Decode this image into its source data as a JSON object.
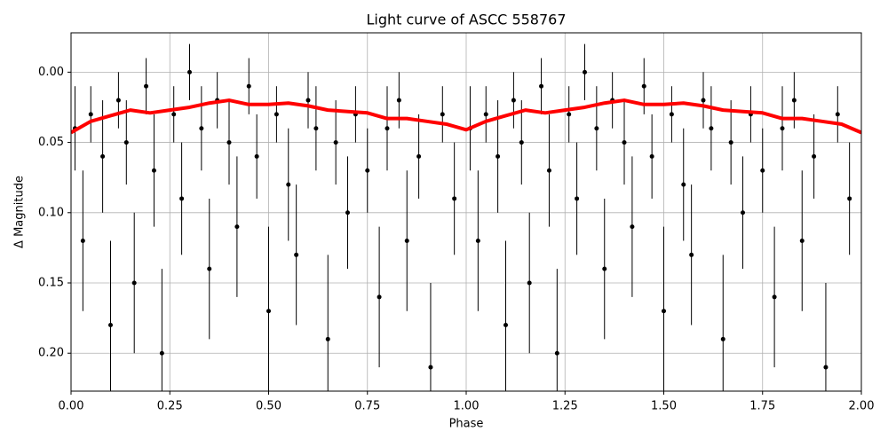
{
  "chart_data": {
    "type": "scatter",
    "title": "Light curve of ASCC 558767",
    "xlabel": "Phase",
    "ylabel": "Δ Magnitude",
    "xlim": [
      0,
      2
    ],
    "ylim": [
      -0.028,
      0.227
    ],
    "y_inverted": true,
    "grid": true,
    "xticks": [
      {
        "value": 0,
        "label": "0.00"
      },
      {
        "value": 0.25,
        "label": "0.25"
      },
      {
        "value": 0.5,
        "label": "0.50"
      },
      {
        "value": 0.75,
        "label": "0.75"
      },
      {
        "value": 1,
        "label": "1.00"
      },
      {
        "value": 1.25,
        "label": "1.25"
      },
      {
        "value": 1.5,
        "label": "1.50"
      },
      {
        "value": 1.75,
        "label": "1.75"
      },
      {
        "value": 2,
        "label": "2.00"
      }
    ],
    "yticks": [
      {
        "value": 0,
        "label": "0.00"
      },
      {
        "value": 0.05,
        "label": "0.05"
      },
      {
        "value": 0.1,
        "label": "0.10"
      },
      {
        "value": 0.15,
        "label": "0.15"
      },
      {
        "value": 0.2,
        "label": "0.20"
      }
    ],
    "points": {
      "color": "#000000",
      "x": [
        0.01,
        0.03,
        0.05,
        0.08,
        0.1,
        0.12,
        0.14,
        0.16,
        0.19,
        0.21,
        0.23,
        0.26,
        0.28,
        0.3,
        0.33,
        0.35,
        0.37,
        0.4,
        0.42,
        0.45,
        0.47,
        0.5,
        0.52,
        0.55,
        0.57,
        0.6,
        0.62,
        0.65,
        0.67,
        0.7,
        0.72,
        0.75,
        0.78,
        0.8,
        0.83,
        0.85,
        0.88,
        0.91,
        0.94,
        0.97,
        1.01,
        1.03,
        1.05,
        1.08,
        1.1,
        1.12,
        1.14,
        1.16,
        1.19,
        1.21,
        1.23,
        1.26,
        1.28,
        1.3,
        1.33,
        1.35,
        1.37,
        1.4,
        1.42,
        1.45,
        1.47,
        1.5,
        1.52,
        1.55,
        1.57,
        1.6,
        1.62,
        1.65,
        1.67,
        1.7,
        1.72,
        1.75,
        1.78,
        1.8,
        1.83,
        1.85,
        1.88,
        1.91,
        1.94,
        1.97
      ],
      "values": [
        0.04,
        0.12,
        0.03,
        0.06,
        0.18,
        0.02,
        0.05,
        0.15,
        0.01,
        0.07,
        0.2,
        0.03,
        0.09,
        0.0,
        0.04,
        0.14,
        0.02,
        0.05,
        0.11,
        0.01,
        0.06,
        0.17,
        0.03,
        0.08,
        0.13,
        0.02,
        0.04,
        0.19,
        0.05,
        0.1,
        0.03,
        0.07,
        0.16,
        0.04,
        0.02,
        0.12,
        0.06,
        0.21,
        0.03,
        0.09,
        0.04,
        0.12,
        0.03,
        0.06,
        0.18,
        0.02,
        0.05,
        0.15,
        0.01,
        0.07,
        0.2,
        0.03,
        0.09,
        0.0,
        0.04,
        0.14,
        0.02,
        0.05,
        0.11,
        0.01,
        0.06,
        0.17,
        0.03,
        0.08,
        0.13,
        0.02,
        0.04,
        0.19,
        0.05,
        0.1,
        0.03,
        0.07,
        0.16,
        0.04,
        0.02,
        0.12,
        0.06,
        0.21,
        0.03,
        0.09
      ],
      "errors": [
        0.03,
        0.05,
        0.02,
        0.04,
        0.06,
        0.02,
        0.03,
        0.05,
        0.02,
        0.04,
        0.06,
        0.02,
        0.04,
        0.02,
        0.03,
        0.05,
        0.02,
        0.03,
        0.05,
        0.02,
        0.03,
        0.06,
        0.02,
        0.04,
        0.05,
        0.02,
        0.03,
        0.06,
        0.03,
        0.04,
        0.02,
        0.03,
        0.05,
        0.03,
        0.02,
        0.05,
        0.03,
        0.06,
        0.02,
        0.04,
        0.03,
        0.05,
        0.02,
        0.04,
        0.06,
        0.02,
        0.03,
        0.05,
        0.02,
        0.04,
        0.06,
        0.02,
        0.04,
        0.02,
        0.03,
        0.05,
        0.02,
        0.03,
        0.05,
        0.02,
        0.03,
        0.06,
        0.02,
        0.04,
        0.05,
        0.02,
        0.03,
        0.06,
        0.03,
        0.04,
        0.02,
        0.03,
        0.05,
        0.03,
        0.02,
        0.05,
        0.03,
        0.06,
        0.02,
        0.04
      ]
    },
    "trend": {
      "color": "#ff0000",
      "x": [
        0,
        0.05,
        0.1,
        0.15,
        0.2,
        0.25,
        0.3,
        0.35,
        0.4,
        0.45,
        0.5,
        0.55,
        0.6,
        0.65,
        0.7,
        0.75,
        0.8,
        0.85,
        0.9,
        0.95,
        1,
        1.05,
        1.1,
        1.15,
        1.2,
        1.25,
        1.3,
        1.35,
        1.4,
        1.45,
        1.5,
        1.55,
        1.6,
        1.65,
        1.7,
        1.75,
        1.8,
        1.85,
        1.9,
        1.95,
        2
      ],
      "values": [
        0.043,
        0.035,
        0.031,
        0.027,
        0.029,
        0.027,
        0.025,
        0.022,
        0.02,
        0.023,
        0.023,
        0.022,
        0.024,
        0.027,
        0.028,
        0.029,
        0.033,
        0.033,
        0.035,
        0.037,
        0.041,
        0.035,
        0.031,
        0.027,
        0.029,
        0.027,
        0.025,
        0.022,
        0.02,
        0.023,
        0.023,
        0.022,
        0.024,
        0.027,
        0.028,
        0.029,
        0.033,
        0.033,
        0.035,
        0.037,
        0.043
      ]
    }
  }
}
